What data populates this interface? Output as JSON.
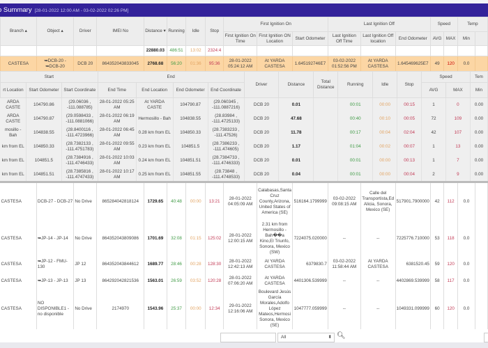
{
  "title": "o Summary",
  "range": "[28-01-2022 12:00 AM - 03-02-2022 02:26 PM]",
  "main_headers": {
    "groups": [
      "First Ignition On",
      "Last Ignition Off",
      "Speed",
      "Temp"
    ],
    "cols": [
      "Branch ▴",
      "Object ▴",
      "Driver",
      "IMEI No",
      "Distance ▾",
      "Running",
      "Idle",
      "Stop"
    ],
    "sub": [
      "First Ignition On Time",
      "First Ignition ON Location",
      "Start Odometer",
      "Last Ignition Off Time",
      "Last Ignition Off location",
      "End Odometer",
      "AVG",
      "MAX",
      "Min"
    ]
  },
  "totals": {
    "distance": "22880.03",
    "running": "486:51",
    "idle": "13:02",
    "stop": "2324:4"
  },
  "expanded_row": [
    "CASTESA",
    "➥DCB-20 - ➥DCB-20",
    "DCB 20",
    "864352043833045",
    "2768.68",
    "56:20",
    "01:36",
    "95:36",
    "28-01-2022 05:24:12 AM",
    "At YARDA CASTESA",
    "1.645192746E7",
    "03-02-2022 01:52:56 PM",
    "At YARDA CASTESA",
    "1.645469625E7",
    "49",
    "120",
    "0.0"
  ],
  "sub_headers": {
    "groups": [
      "Start",
      "End",
      "Speed",
      "Tem"
    ],
    "cols": [
      "rt Location",
      "Start Odometer",
      "Start Coordinate",
      "End Time",
      "End Location",
      "End Odometer",
      "End Coordinate",
      "Driver",
      "Distance",
      "Total Distance",
      "Running",
      "Idle",
      "Stop",
      "AVG",
      "MAX",
      "Min"
    ]
  },
  "sub_rows": [
    [
      "ARDA CASTE",
      "104790.86",
      "(29.06036 , -111.088785)",
      "28-01-2022 05:25 AM",
      "At YARDA CASTE",
      "104790.87",
      "(29.060345 , -111.0887216)",
      "DCB 20",
      "0.01",
      "",
      "00:01",
      "00:00",
      "00:15",
      "1",
      "0",
      "0.00"
    ],
    [
      "ARDA CASTE",
      "104790.87",
      "(29.0598433 , -111.0881066)",
      "28-01-2022 06:19 AM",
      "Hermosillo - Bah",
      "104838.55",
      "(28.83984 , -111.4725133)",
      "DCB 20",
      "47.68",
      "",
      "00:40",
      "00:10",
      "00:05",
      "72",
      "109",
      "0.00"
    ],
    [
      "mosillo - Bah",
      "104838.55",
      "(28.8400116 , -111.4723966)",
      "28-01-2022 06:45 AM",
      "0.28 km from EL",
      "104850.33",
      "(28.7383233 , -111.47526)",
      "DCB 20",
      "11.78",
      "",
      "00:17",
      "00:04",
      "02:04",
      "42",
      "107",
      "0.00"
    ],
    [
      "km from EL",
      "104850.33",
      "(28.7382133 , -111.4751783)",
      "28-01-2022 09:55 AM",
      "0.23 km from EL",
      "104851.5",
      "(28.7386233 , -111.474605)",
      "DCB 20",
      "1.17",
      "",
      "01:04",
      "00:02",
      "00:07",
      "1",
      "13",
      "0.00"
    ],
    [
      "km from EL",
      "104851.5",
      "(28.7384916 , -111.4746433)",
      "28-01-2022 10:03 AM",
      "0.24 km from EL",
      "104851.51",
      "(28.7384733 , -111.4746333)",
      "DCB 20",
      "0.01",
      "",
      "00:01",
      "00:00",
      "00:13",
      "1",
      "7",
      "0.00"
    ],
    [
      "km from EL",
      "104851.51",
      "(28.7385816 , -111.4747433)",
      "28-01-2022 10:17 AM",
      "0.25 km from EL",
      "104851.55",
      "(28.73848 , -111.4748533)",
      "DCB 20",
      "0.04",
      "",
      "00:01",
      "00:00",
      "00:04",
      "2",
      "9",
      "0.00"
    ]
  ],
  "rows": [
    [
      "CASTESA",
      "DCB-27 - DCB-27",
      "No Drive",
      "865284042818124",
      "1729.65",
      "40:48",
      "00:00",
      "13:21",
      "28-01-2022 04:05:09 AM",
      "Calabasas,Santa Cruz County,Arizona, United States of America (SE)",
      "516164.1799999",
      "03-02-2022 09:08:15 AM",
      "Calle del Transportista,Ed Alicia, Sonora, Mexico (SE)",
      "517901.7900000",
      "42",
      "112",
      "0.0"
    ],
    [
      "CASTESA",
      "➥JP-14 - JP-14",
      "No Drive",
      "864352043809086",
      "1701.69",
      "32:08",
      "01:15",
      "125:02",
      "28-01-2022 12:00:15 AM",
      "2.31 km from Hermosillo - Bah��a Kino,El Triunfo, Sonora, Mexico (SW)",
      "7224075.020000",
      "--",
      "--",
      "7225776.710000",
      "53",
      "118",
      "0.0"
    ],
    [
      "CASTESA",
      "➥JP-12 - FMU-130",
      "JP 12",
      "864352043844612",
      "1689.77",
      "28:46",
      "00:28",
      "128:30",
      "28-01-2022 12:42:13 AM",
      "At YARDA CASTESA",
      "6379830.7",
      "03-02-2022 11:58:44 AM",
      "At YARDA CASTESA",
      "6381520.45",
      "59",
      "120",
      "0.0"
    ],
    [
      "CASTESA",
      "➥JP-13 - JP-13",
      "JP 13",
      "864292042821536",
      "1563.01",
      "26:59",
      "03:52",
      "120:28",
      "28-01-2022 07:06:20 AM",
      "At YARDA CASTESA",
      "4401306.539999",
      "--",
      "--",
      "4402869.539999",
      "58",
      "117",
      "0.0"
    ],
    [
      "CASTESA",
      "NO DISPONIBLE1 - no disponible",
      "No Drive",
      "2174970",
      "1543.96",
      "25:37",
      "00:00",
      "12:34",
      "29-01-2022 12:16:06 AM",
      "Boulevard Jesús García Morales,Adolfo López Mateos,Hermosi Sonora, Mexico (SE)",
      "1047777.059999",
      "--",
      "--",
      "1049331.099999",
      "60",
      "120",
      "0.0"
    ]
  ],
  "footer": {
    "search_value": "",
    "filter_value": "All"
  },
  "colors": {
    "titlebar": "#33229a",
    "running": "#3f9a45",
    "idle": "#e2a463",
    "stop": "#c23a55",
    "expanded": "#fcd6a4"
  }
}
